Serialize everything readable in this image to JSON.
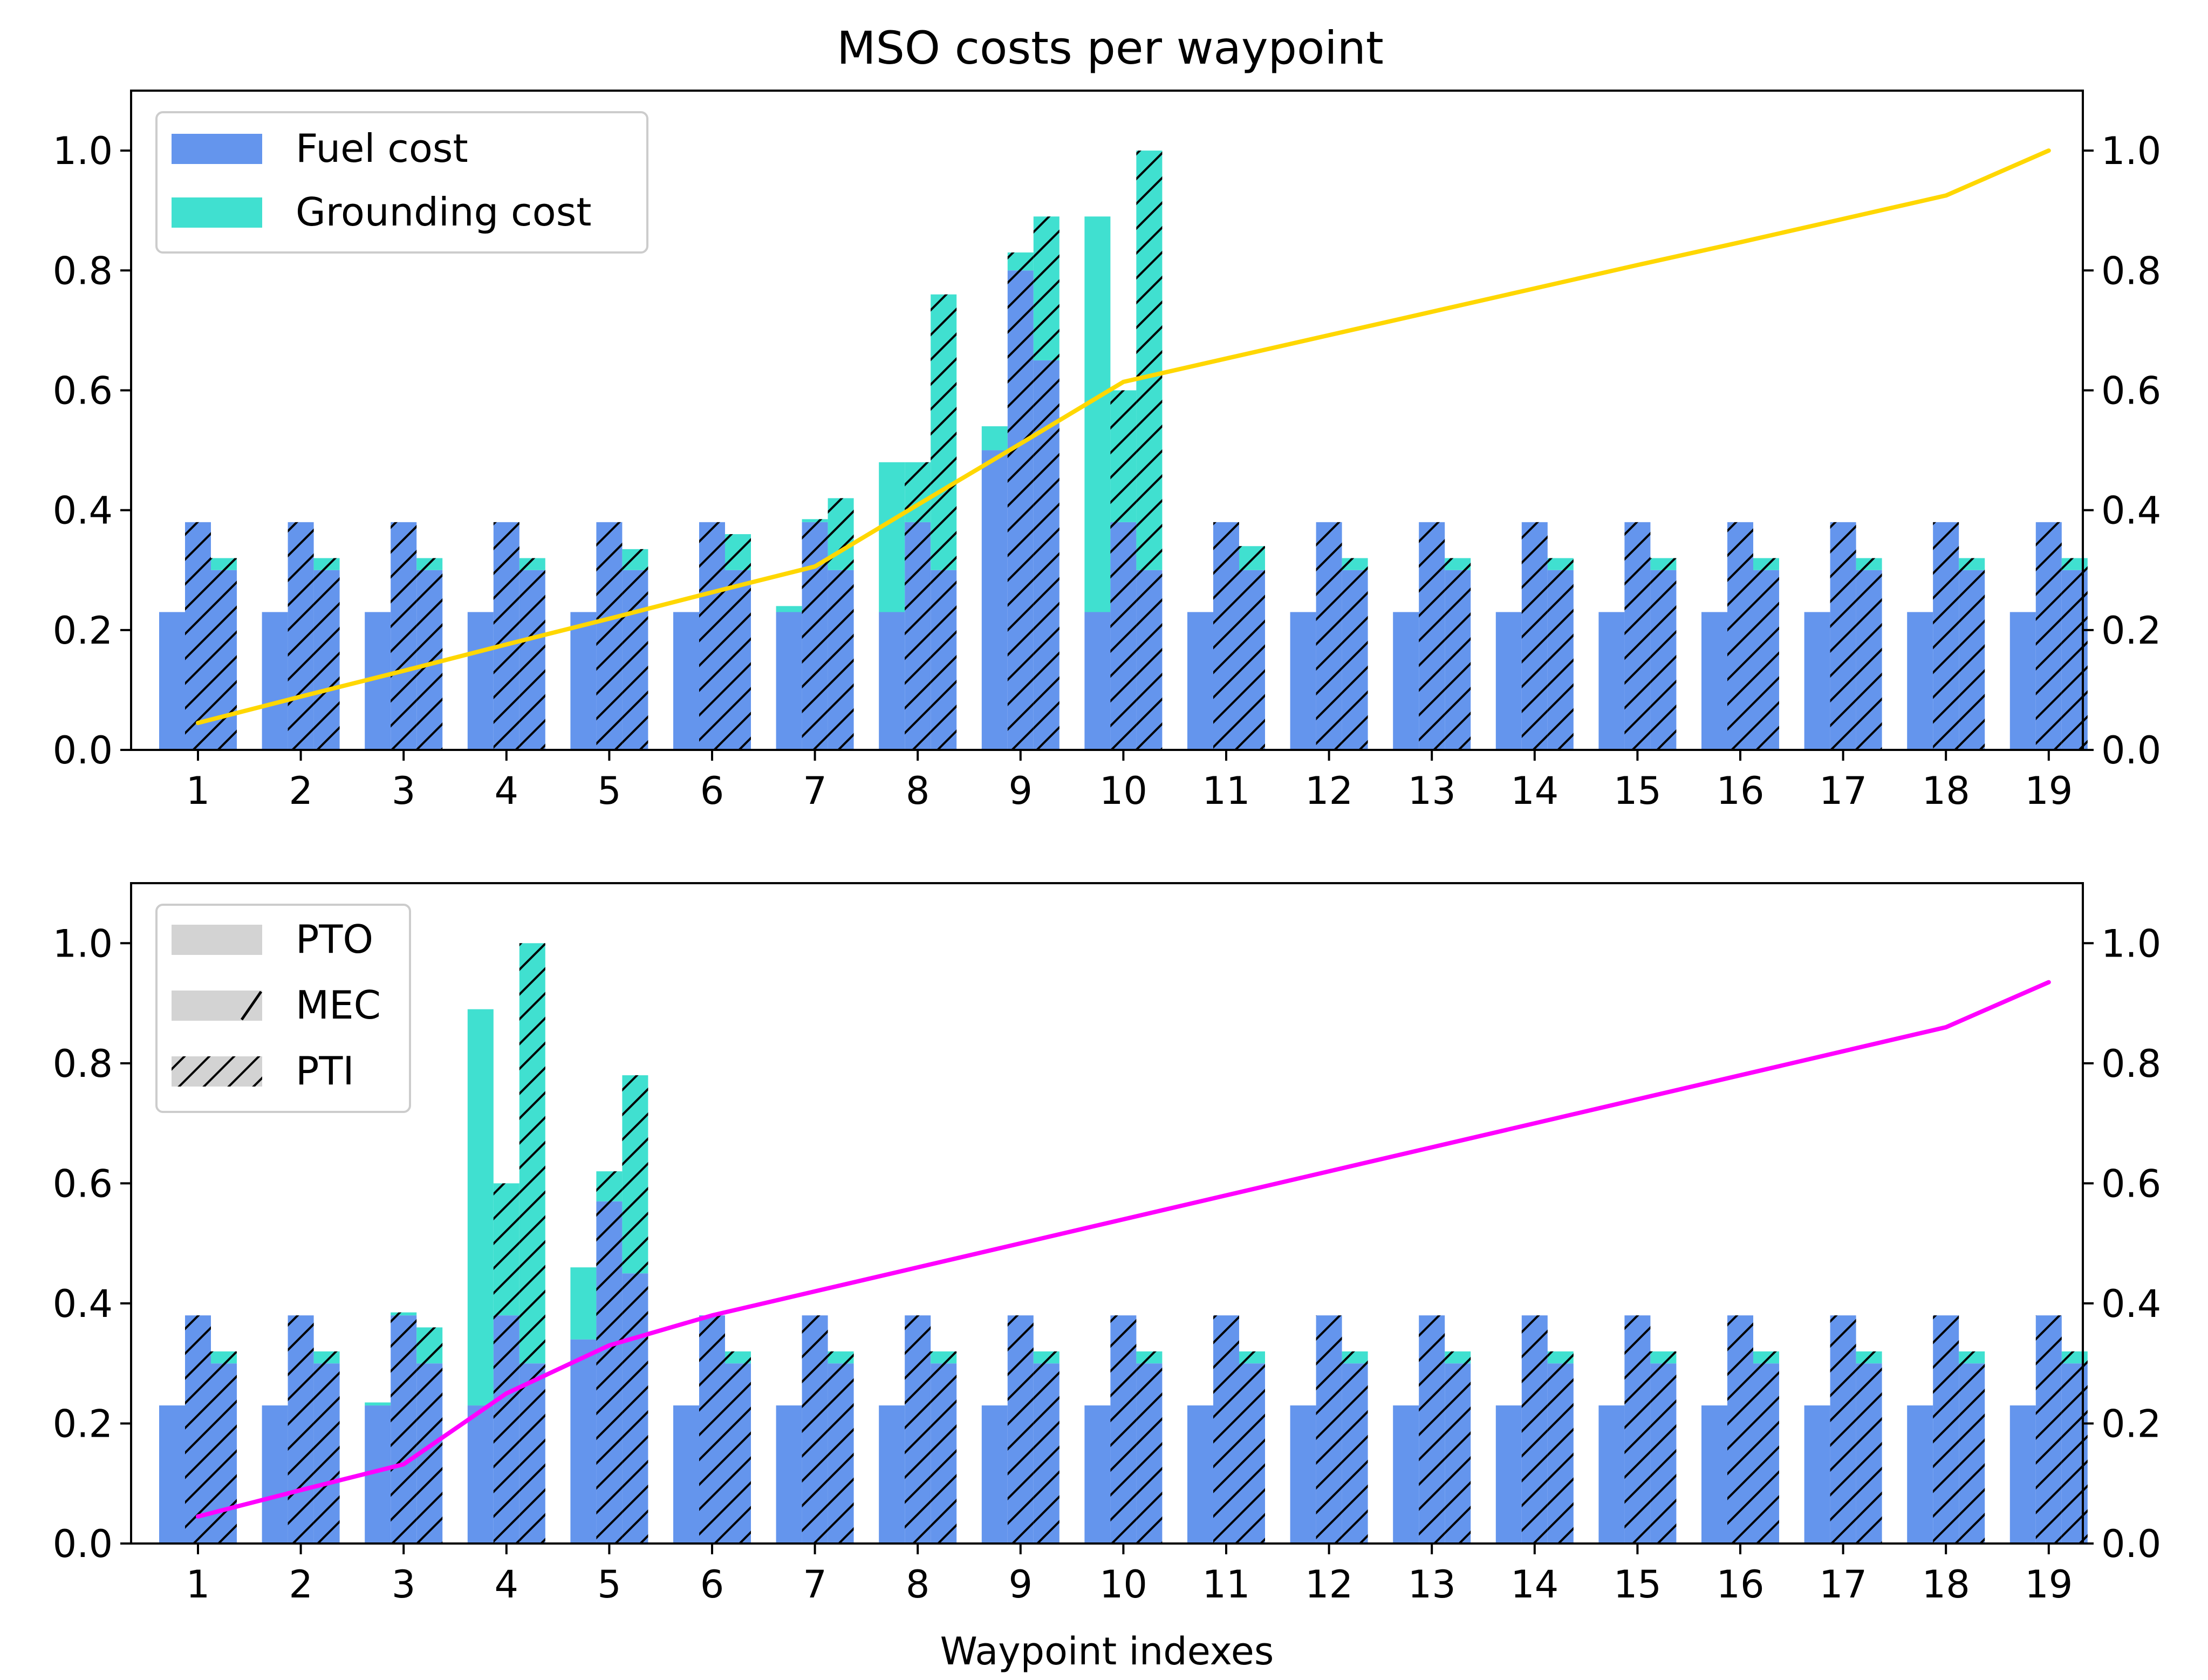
{
  "chart_data": {
    "type": "bar",
    "title": "MSO costs per waypoint",
    "xlabel": "Waypoint indexes",
    "categories": [
      "1",
      "2",
      "3",
      "4",
      "5",
      "6",
      "7",
      "8",
      "9",
      "10",
      "11",
      "12",
      "13",
      "14",
      "15",
      "16",
      "17",
      "18",
      "19"
    ],
    "ylim": [
      0,
      1.1
    ],
    "yticks": [
      "0.0",
      "0.2",
      "0.4",
      "0.6",
      "0.8",
      "1.0"
    ],
    "colors": {
      "fuel": "#6495ED",
      "grounding": "#40E0D0",
      "legend_patch": "#D3D3D3",
      "hatch": "#000000"
    },
    "legend_cost": {
      "placement": "top-left",
      "items": [
        "Fuel cost",
        "Grounding cost"
      ]
    },
    "legend_mode": {
      "placement": "top-left",
      "items": [
        "PTO",
        "MEC",
        "PTI"
      ]
    },
    "bar_modes": [
      "PTO",
      "MEC",
      "PTI"
    ],
    "panels": [
      {
        "name": "top",
        "line": {
          "color": "#FFD700",
          "values": [
            0.045,
            0.089,
            0.132,
            0.176,
            0.219,
            0.263,
            0.306,
            0.409,
            0.511,
            0.614,
            0.653,
            0.692,
            0.731,
            0.77,
            0.809,
            0.847,
            0.886,
            0.925,
            1.0
          ]
        },
        "fuel": {
          "PTO": [
            0.23,
            0.23,
            0.23,
            0.23,
            0.23,
            0.23,
            0.23,
            0.23,
            0.5,
            0.23,
            0.23,
            0.23,
            0.23,
            0.23,
            0.23,
            0.23,
            0.23,
            0.23,
            0.23
          ],
          "MEC": [
            0.38,
            0.38,
            0.38,
            0.38,
            0.38,
            0.38,
            0.38,
            0.38,
            0.8,
            0.38,
            0.38,
            0.38,
            0.38,
            0.38,
            0.38,
            0.38,
            0.38,
            0.38,
            0.38
          ],
          "PTI": [
            0.3,
            0.3,
            0.3,
            0.3,
            0.3,
            0.3,
            0.3,
            0.3,
            0.65,
            0.3,
            0.3,
            0.3,
            0.3,
            0.3,
            0.3,
            0.3,
            0.3,
            0.3,
            0.3
          ]
        },
        "grounding": {
          "PTO": [
            0,
            0,
            0,
            0,
            0,
            0,
            0.01,
            0.25,
            0.04,
            0.66,
            0,
            0,
            0,
            0,
            0,
            0,
            0,
            0,
            0
          ],
          "MEC": [
            0,
            0,
            0,
            0,
            0,
            0,
            0.005,
            0.1,
            0.03,
            0.22,
            0,
            0,
            0,
            0,
            0,
            0,
            0,
            0,
            0
          ],
          "PTI": [
            0.02,
            0.02,
            0.02,
            0.02,
            0.035,
            0.06,
            0.12,
            0.46,
            0.24,
            0.7,
            0.04,
            0.02,
            0.02,
            0.02,
            0.02,
            0.02,
            0.02,
            0.02,
            0.02
          ]
        }
      },
      {
        "name": "bottom",
        "line": {
          "color": "#FF00FF",
          "values": [
            0.045,
            0.089,
            0.132,
            0.25,
            0.33,
            0.38,
            0.42,
            0.46,
            0.5,
            0.54,
            0.58,
            0.62,
            0.66,
            0.7,
            0.74,
            0.78,
            0.82,
            0.86,
            0.935
          ]
        },
        "fuel": {
          "PTO": [
            0.23,
            0.23,
            0.23,
            0.23,
            0.34,
            0.23,
            0.23,
            0.23,
            0.23,
            0.23,
            0.23,
            0.23,
            0.23,
            0.23,
            0.23,
            0.23,
            0.23,
            0.23,
            0.23
          ],
          "MEC": [
            0.38,
            0.38,
            0.38,
            0.38,
            0.57,
            0.38,
            0.38,
            0.38,
            0.38,
            0.38,
            0.38,
            0.38,
            0.38,
            0.38,
            0.38,
            0.38,
            0.38,
            0.38,
            0.38
          ],
          "PTI": [
            0.3,
            0.3,
            0.3,
            0.3,
            0.45,
            0.3,
            0.3,
            0.3,
            0.3,
            0.3,
            0.3,
            0.3,
            0.3,
            0.3,
            0.3,
            0.3,
            0.3,
            0.3,
            0.3
          ]
        },
        "grounding": {
          "PTO": [
            0,
            0,
            0.005,
            0.66,
            0.12,
            0,
            0,
            0,
            0,
            0,
            0,
            0,
            0,
            0,
            0,
            0,
            0,
            0,
            0
          ],
          "MEC": [
            0,
            0,
            0.005,
            0.22,
            0.05,
            0,
            0,
            0,
            0,
            0,
            0,
            0,
            0,
            0,
            0,
            0,
            0,
            0,
            0
          ],
          "PTI": [
            0.02,
            0.02,
            0.06,
            0.7,
            0.33,
            0.02,
            0.02,
            0.02,
            0.02,
            0.02,
            0.02,
            0.02,
            0.02,
            0.02,
            0.02,
            0.02,
            0.02,
            0.02,
            0.02
          ]
        }
      }
    ]
  }
}
